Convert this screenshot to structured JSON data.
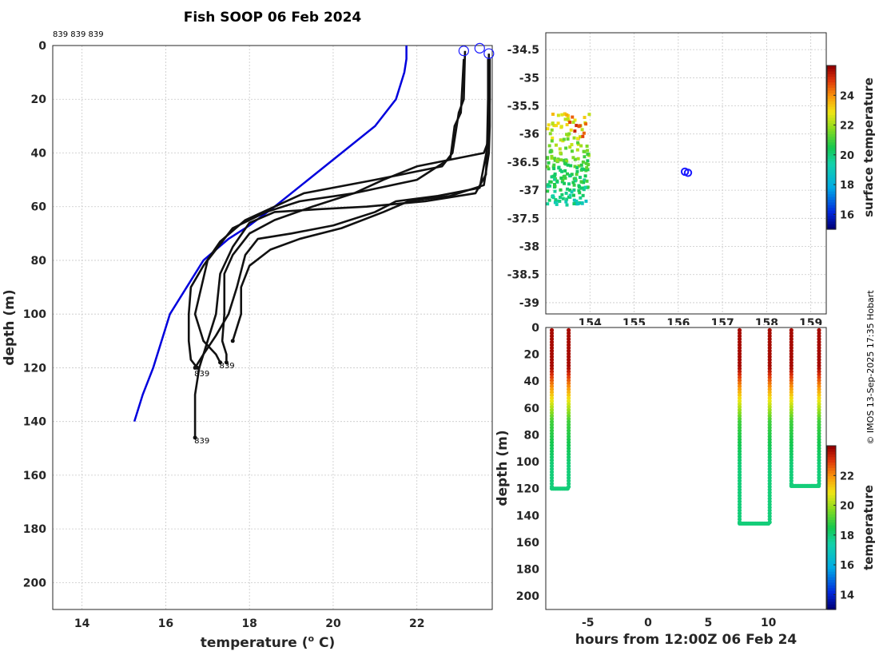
{
  "title": "Fish SOOP 06 Feb 2024",
  "copyright": "© IMOS 13-Sep-2025 17:35 Hobart",
  "chart_data": [
    {
      "id": "profiles",
      "type": "line",
      "xlabel_main": "temperature (",
      "xlabel_sup": "o",
      "xlabel_end": " C)",
      "ylabel": "depth (m)",
      "xlim": [
        13.3,
        23.8
      ],
      "ylim": [
        0,
        210
      ],
      "y_reversed": true,
      "grid": true,
      "xticks": [
        14,
        16,
        18,
        20,
        22
      ],
      "yticks": [
        0,
        20,
        40,
        60,
        80,
        100,
        120,
        140,
        160,
        180,
        200
      ],
      "top_label": "839 839 839",
      "end_labels": [
        {
          "text": "839",
          "x": 16.7,
          "y": 122
        },
        {
          "text": "839",
          "x": 17.3,
          "y": 119
        },
        {
          "text": "839",
          "x": 16.7,
          "y": 147
        }
      ],
      "reference": {
        "color": "#0000dd",
        "x": [
          21.75,
          21.75,
          21.7,
          21.5,
          21.0,
          20.2,
          19.4,
          18.6,
          18.0,
          17.5,
          16.9,
          16.5,
          16.1,
          15.7,
          15.45,
          15.25
        ],
        "y": [
          0,
          5,
          10,
          20,
          30,
          40,
          50,
          60,
          67,
          72,
          80,
          90,
          100,
          120,
          130,
          140
        ]
      },
      "series": [
        {
          "x": [
            23.15,
            23.12,
            23.0,
            22.9,
            22.85,
            22.6,
            21.0,
            19.3,
            18.6,
            17.9,
            17.3,
            16.9,
            16.6,
            16.55,
            16.55,
            16.6,
            16.75
          ],
          "y": [
            2,
            20,
            25,
            35,
            40,
            45,
            50,
            55,
            60,
            65,
            73,
            82,
            90,
            100,
            110,
            117,
            120
          ]
        },
        {
          "x": [
            23.12,
            23.05,
            22.9,
            22.8,
            22.0,
            20.5,
            19.2,
            18.4,
            17.6,
            17.0,
            16.7,
            16.9,
            17.2,
            17.3
          ],
          "y": [
            5,
            25,
            30,
            42,
            50,
            55,
            58,
            62,
            68,
            80,
            100,
            110,
            115,
            118
          ]
        },
        {
          "x": [
            23.72,
            23.72,
            23.7,
            23.7,
            23.72,
            23.6,
            22.0,
            21.2,
            20.5,
            19.5,
            18.6,
            18.0,
            17.6,
            17.4,
            17.4,
            17.35,
            17.45,
            17.45
          ],
          "y": [
            3,
            10,
            20,
            30,
            35,
            40,
            45,
            50,
            55,
            60,
            65,
            70,
            78,
            85,
            100,
            110,
            115,
            118
          ]
        },
        {
          "x": [
            23.7,
            23.7,
            23.68,
            23.65,
            23.4,
            22.2,
            20.8,
            19.6,
            18.6,
            18.0,
            17.6,
            17.3,
            17.2,
            17.0,
            16.8,
            16.7,
            16.7,
            16.7
          ],
          "y": [
            5,
            20,
            35,
            48,
            55,
            58,
            60,
            61,
            62,
            66,
            75,
            85,
            100,
            110,
            120,
            130,
            140,
            146
          ]
        },
        {
          "x": [
            23.74,
            23.74,
            23.72,
            23.5,
            22.5,
            21.5,
            21.0,
            20.0,
            19.0,
            18.2,
            17.9,
            17.7,
            17.5,
            17.2,
            16.9,
            16.7
          ],
          "y": [
            5,
            20,
            35,
            53,
            56,
            58,
            62,
            67,
            70,
            72,
            78,
            90,
            100,
            108,
            115,
            120
          ]
        },
        {
          "x": [
            23.74,
            23.74,
            23.72,
            23.6,
            22.8,
            21.8,
            21.2,
            20.2,
            19.2,
            18.5,
            18.0,
            17.8,
            17.8,
            17.6
          ],
          "y": [
            5,
            30,
            40,
            52,
            56,
            58,
            62,
            68,
            72,
            76,
            82,
            90,
            100,
            110
          ]
        }
      ],
      "markers": [
        {
          "x": 23.12,
          "y": 2
        },
        {
          "x": 23.5,
          "y": 1
        },
        {
          "x": 23.72,
          "y": 3
        }
      ]
    },
    {
      "id": "map",
      "type": "scatter",
      "xlim": [
        153.0,
        159.35
      ],
      "ylim": [
        -39.2,
        -34.2
      ],
      "grid": true,
      "xticks": [
        154,
        155,
        156,
        157,
        158,
        159
      ],
      "xtick_labels": [
        "154",
        "155",
        "156",
        "157",
        "158",
        "159"
      ],
      "yticks": [
        -34.5,
        -35,
        -35.5,
        -36,
        -36.5,
        -37,
        -37.5,
        -38,
        -38.5,
        -39
      ],
      "ytick_labels": [
        "-34.5",
        "-35",
        "-35.5",
        "-36",
        "-36.5",
        "-37",
        "-37.5",
        "-38",
        "-38.5",
        "-39"
      ],
      "stations": [
        {
          "lon": 156.15,
          "lat": -36.67
        },
        {
          "lon": 156.22,
          "lat": -36.69
        }
      ],
      "colorbar": {
        "label": "surface temperature",
        "range": [
          15,
          26
        ],
        "ticks": [
          16,
          18,
          20,
          22,
          24
        ]
      }
    },
    {
      "id": "section",
      "type": "scatter",
      "xlabel": "hours from 12:00Z 06 Feb 24",
      "ylabel": "depth (m)",
      "xlim": [
        -8.5,
        14.8
      ],
      "ylim": [
        0,
        210
      ],
      "y_reversed": true,
      "xticks": [
        -5,
        0,
        5,
        10
      ],
      "yticks": [
        0,
        20,
        40,
        60,
        80,
        100,
        120,
        140,
        160,
        180,
        200
      ],
      "casts": [
        {
          "t_down": -8.0,
          "t_up": -6.6,
          "bottom": 120
        },
        {
          "t_down": 7.6,
          "t_up": 10.1,
          "bottom": 146
        },
        {
          "t_down": 11.9,
          "t_up": 14.2,
          "bottom": 118
        }
      ],
      "colorbar": {
        "label": "temperature",
        "range": [
          13,
          24
        ],
        "ticks": [
          14,
          16,
          18,
          20,
          22
        ]
      }
    }
  ]
}
